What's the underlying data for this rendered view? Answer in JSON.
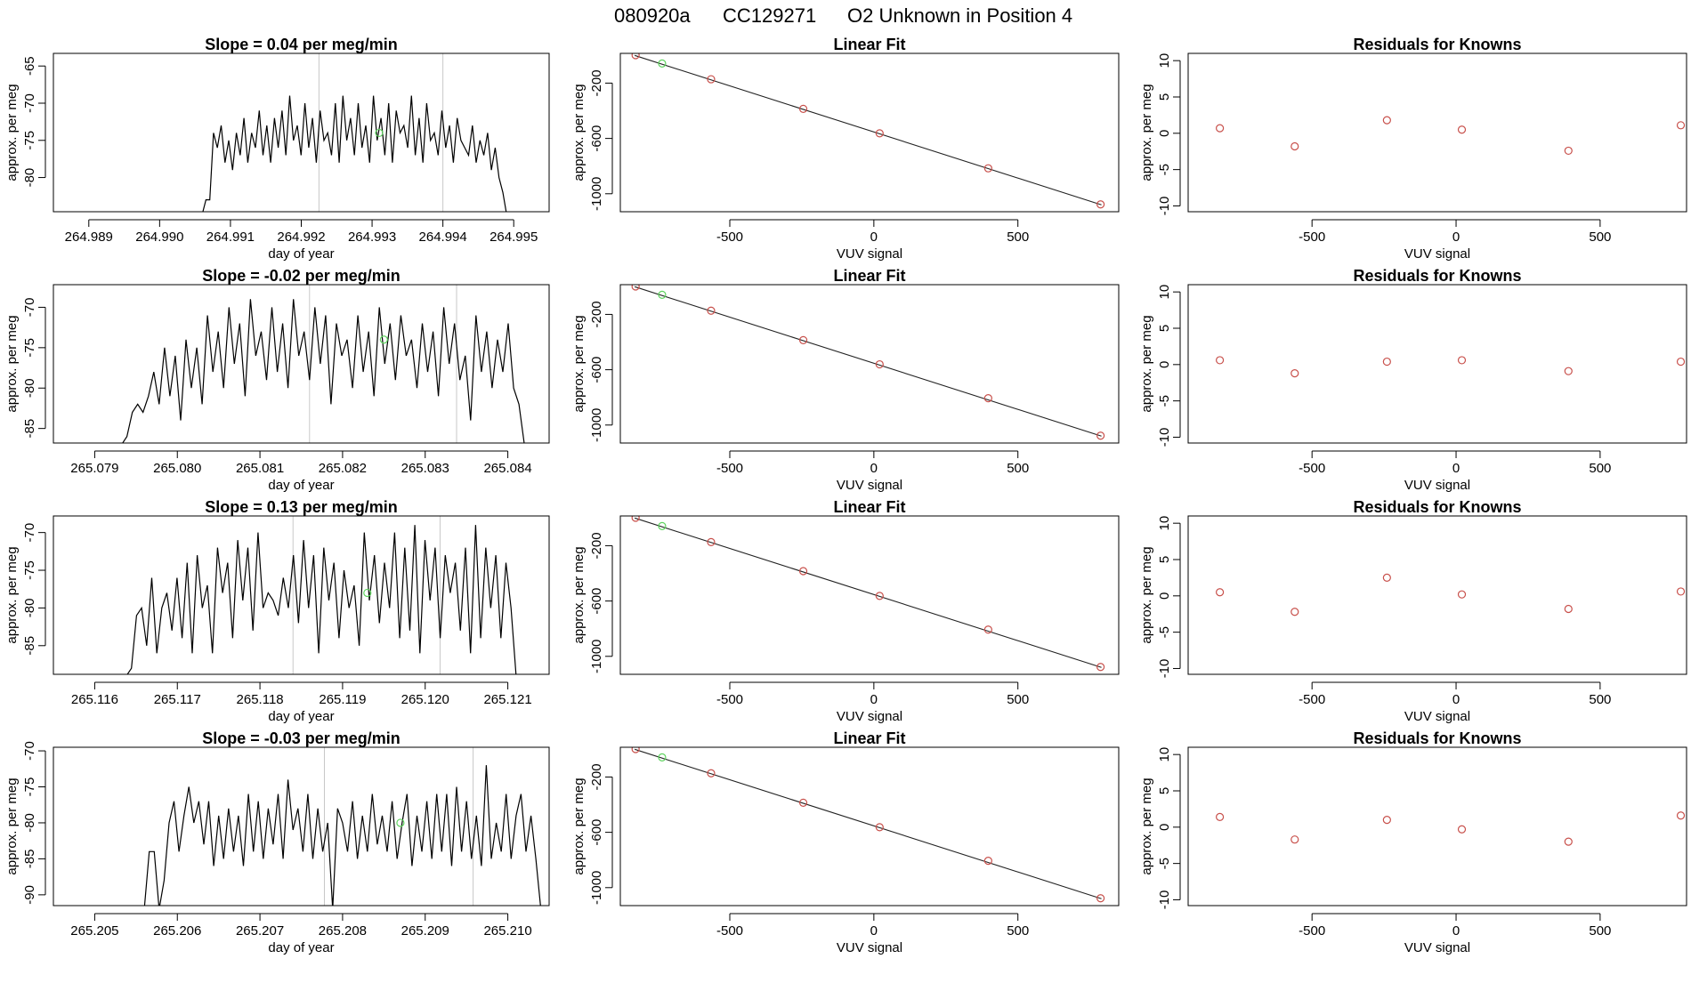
{
  "figure": {
    "title_parts": [
      "080920a",
      "CC129271",
      "O2 Unknown in Position  4"
    ]
  },
  "colors": {
    "axis": "#000000",
    "series_line": "#000000",
    "gridline": "#c8c8c8",
    "fit_point": "#c8504b",
    "unknown_point": "#5ed35e"
  },
  "chart_data": [
    {
      "type": "line",
      "row": 0,
      "col": 0,
      "title": "Slope =  0.04  per meg/min",
      "xlabel": "day of year",
      "ylabel": "approx. per meg",
      "xlim": [
        264.9885,
        264.9955
      ],
      "ylim": [
        -84.6,
        -63.3
      ],
      "xticks": [
        264.989,
        264.99,
        264.991,
        264.992,
        264.993,
        264.994,
        264.995
      ],
      "xtick_labels": [
        "264.989",
        "264.990",
        "264.991",
        "264.992",
        "264.993",
        "264.994",
        "264.995"
      ],
      "yticks": [
        -65,
        -70,
        -75,
        -80
      ],
      "ytick_labels": [
        "-65",
        "-70",
        "-75",
        "-80"
      ],
      "vlines": [
        264.99225,
        264.994
      ],
      "unknown_point": [
        264.9931,
        -74.0
      ],
      "x_start": 264.9906,
      "x_end": 264.9949,
      "series": [
        -85,
        -83,
        -83,
        -74,
        -76,
        -73,
        -78,
        -75,
        -79,
        -74,
        -77,
        -72,
        -78,
        -74,
        -76,
        -71,
        -77,
        -73,
        -78,
        -72,
        -76,
        -71,
        -77,
        -69,
        -75,
        -73,
        -77,
        -70,
        -76,
        -72,
        -78,
        -71,
        -75,
        -74,
        -77,
        -70,
        -78,
        -69,
        -75,
        -72,
        -77,
        -70,
        -76,
        -73,
        -78,
        -69,
        -75,
        -72,
        -77,
        -70,
        -78,
        -71,
        -74,
        -73,
        -76,
        -69,
        -77,
        -72,
        -78,
        -70,
        -75,
        -74,
        -77,
        -71,
        -76,
        -73,
        -78,
        -72,
        -75,
        -76,
        -77,
        -73,
        -78,
        -75,
        -77,
        -74,
        -79,
        -76,
        -80,
        -82,
        -85
      ]
    },
    {
      "type": "scatter",
      "row": 0,
      "col": 1,
      "title": "Linear Fit",
      "xlabel": "VUV signal",
      "ylabel": "approx. per meg",
      "xlim": [
        -880,
        850
      ],
      "ylim": [
        -1130,
        15
      ],
      "xticks": [
        -500,
        0,
        500
      ],
      "xtick_labels": [
        "-500",
        "0",
        "500"
      ],
      "yticks": [
        -200,
        -600,
        -1000
      ],
      "ytick_labels": [
        "-200",
        "-600",
        "-1000"
      ],
      "fit_line": [
        [
          -830,
          0
        ],
        [
          790,
          -1080
        ]
      ],
      "points": [
        [
          -827,
          2
        ],
        [
          -565,
          -172
        ],
        [
          -245,
          -386
        ],
        [
          20,
          -563
        ],
        [
          397,
          -816
        ],
        [
          787,
          -1077
        ]
      ],
      "unknown_point": [
        -735,
        -58
      ]
    },
    {
      "type": "scatter",
      "row": 0,
      "col": 2,
      "title": "Residuals for Knowns",
      "xlabel": "VUV signal",
      "ylabel": "approx. per meg",
      "xlim": [
        -930,
        800
      ],
      "ylim": [
        -10.8,
        11
      ],
      "xticks": [
        -500,
        0,
        500
      ],
      "xtick_labels": [
        "-500",
        "0",
        "500"
      ],
      "yticks": [
        10,
        5,
        0,
        -5,
        -10
      ],
      "ytick_labels": [
        "10",
        "5",
        "0",
        "-5",
        "-10"
      ],
      "points": [
        [
          -820,
          0.7
        ],
        [
          -560,
          -1.8
        ],
        [
          -240,
          1.8
        ],
        [
          20,
          0.5
        ],
        [
          390,
          -2.4
        ],
        [
          780,
          1.1
        ]
      ]
    },
    {
      "type": "line",
      "row": 1,
      "col": 0,
      "title": "Slope =  -0.02  per meg/min",
      "xlabel": "day of year",
      "ylabel": "approx. per meg",
      "xlim": [
        265.0785,
        265.0845
      ],
      "ylim": [
        -86.8,
        -67.2
      ],
      "xticks": [
        265.079,
        265.08,
        265.081,
        265.082,
        265.083,
        265.084
      ],
      "xtick_labels": [
        "265.079",
        "265.080",
        "265.081",
        "265.082",
        "265.083",
        "265.084"
      ],
      "vlines": [
        265.0816,
        265.08338
      ],
      "yticks": [
        -70,
        -75,
        -80,
        -85
      ],
      "ytick_labels": [
        "-70",
        "-75",
        "-80",
        "-85"
      ],
      "unknown_point": [
        265.0825,
        -74.0
      ],
      "x_start": 265.079,
      "x_end": 265.0842,
      "series": [
        -87,
        -87,
        -87,
        -87,
        -87,
        -87,
        -86,
        -83,
        -82,
        -83,
        -81,
        -78,
        -82,
        -75,
        -81,
        -76,
        -84,
        -74,
        -80,
        -75,
        -82,
        -71,
        -78,
        -73,
        -80,
        -70,
        -77,
        -72,
        -81,
        -69,
        -76,
        -73,
        -79,
        -70,
        -78,
        -72,
        -80,
        -69,
        -76,
        -73,
        -79,
        -70,
        -77,
        -71,
        -82,
        -72,
        -76,
        -74,
        -80,
        -71,
        -78,
        -73,
        -81,
        -70,
        -77,
        -72,
        -79,
        -71,
        -76,
        -74,
        -80,
        -72,
        -78,
        -73,
        -81,
        -70,
        -77,
        -72,
        -79,
        -76,
        -84,
        -71,
        -78,
        -73,
        -80,
        -74,
        -78,
        -72,
        -80,
        -82,
        -87
      ]
    },
    {
      "type": "scatter",
      "row": 1,
      "col": 1,
      "title": "Linear Fit",
      "xlabel": "VUV signal",
      "ylabel": "approx. per meg",
      "xlim": [
        -880,
        850
      ],
      "ylim": [
        -1130,
        15
      ],
      "xticks": [
        -500,
        0,
        500
      ],
      "xtick_labels": [
        "-500",
        "0",
        "500"
      ],
      "yticks": [
        -200,
        -600,
        -1000
      ],
      "ytick_labels": [
        "-200",
        "-600",
        "-1000"
      ],
      "fit_line": [
        [
          -830,
          0
        ],
        [
          790,
          -1080
        ]
      ],
      "points": [
        [
          -827,
          2
        ],
        [
          -565,
          -173
        ],
        [
          -245,
          -386
        ],
        [
          20,
          -561
        ],
        [
          397,
          -806
        ],
        [
          787,
          -1077
        ]
      ],
      "unknown_point": [
        -735,
        -58
      ]
    },
    {
      "type": "scatter",
      "row": 1,
      "col": 2,
      "title": "Residuals for Knowns",
      "xlabel": "VUV signal",
      "ylabel": "approx. per meg",
      "xlim": [
        -930,
        800
      ],
      "ylim": [
        -10.8,
        11
      ],
      "xticks": [
        -500,
        0,
        500
      ],
      "xtick_labels": [
        "-500",
        "0",
        "500"
      ],
      "yticks": [
        10,
        5,
        0,
        -5,
        -10
      ],
      "ytick_labels": [
        "10",
        "5",
        "0",
        "-5",
        "-10"
      ],
      "points": [
        [
          -820,
          0.6
        ],
        [
          -560,
          -1.2
        ],
        [
          -240,
          0.4
        ],
        [
          20,
          0.6
        ],
        [
          390,
          -0.9
        ],
        [
          780,
          0.4
        ]
      ]
    },
    {
      "type": "line",
      "row": 2,
      "col": 0,
      "title": "Slope =  0.13  per meg/min",
      "xlabel": "day of year",
      "ylabel": "approx. per meg",
      "xlim": [
        265.1155,
        265.1215
      ],
      "ylim": [
        -88.8,
        -67.8
      ],
      "xticks": [
        265.116,
        265.117,
        265.118,
        265.119,
        265.12,
        265.121
      ],
      "xtick_labels": [
        "265.116",
        "265.117",
        "265.118",
        "265.119",
        "265.120",
        "265.121"
      ],
      "vlines": [
        265.1184,
        265.12018
      ],
      "yticks": [
        -70,
        -75,
        -80,
        -85
      ],
      "ytick_labels": [
        "-70",
        "-75",
        "-80",
        "-85"
      ],
      "unknown_point": [
        265.1193,
        -78.0
      ],
      "x_start": 265.1162,
      "x_end": 265.1211,
      "series": [
        -89,
        -89,
        -89,
        -89,
        -88,
        -81,
        -80,
        -85,
        -76,
        -86,
        -80,
        -78,
        -83,
        -76,
        -84,
        -74,
        -86,
        -73,
        -80,
        -77,
        -86,
        -72,
        -78,
        -74,
        -84,
        -71,
        -79,
        -72,
        -83,
        -70,
        -80,
        -78,
        -79,
        -81,
        -76,
        -80,
        -73,
        -82,
        -71,
        -80,
        -73,
        -86,
        -72,
        -79,
        -74,
        -84,
        -75,
        -80,
        -77,
        -85,
        -70,
        -79,
        -73,
        -82,
        -74,
        -80,
        -70,
        -84,
        -72,
        -83,
        -69,
        -86,
        -71,
        -79,
        -72,
        -84,
        -73,
        -78,
        -74,
        -83,
        -72,
        -86,
        -69,
        -84,
        -72,
        -80,
        -73,
        -84,
        -74,
        -80,
        -89
      ]
    },
    {
      "type": "scatter",
      "row": 2,
      "col": 1,
      "title": "Linear Fit",
      "xlabel": "VUV signal",
      "ylabel": "approx. per meg",
      "xlim": [
        -880,
        850
      ],
      "ylim": [
        -1130,
        15
      ],
      "xticks": [
        -500,
        0,
        500
      ],
      "xtick_labels": [
        "-500",
        "0",
        "500"
      ],
      "yticks": [
        -200,
        -600,
        -1000
      ],
      "ytick_labels": [
        "-200",
        "-600",
        "-1000"
      ],
      "fit_line": [
        [
          -830,
          0
        ],
        [
          790,
          -1080
        ]
      ],
      "points": [
        [
          -827,
          2
        ],
        [
          -565,
          -174
        ],
        [
          -245,
          -384
        ],
        [
          20,
          -563
        ],
        [
          397,
          -807
        ],
        [
          787,
          -1077
        ]
      ],
      "unknown_point": [
        -735,
        -58
      ]
    },
    {
      "type": "scatter",
      "row": 2,
      "col": 2,
      "title": "Residuals for Knowns",
      "xlabel": "VUV signal",
      "ylabel": "approx. per meg",
      "xlim": [
        -930,
        800
      ],
      "ylim": [
        -10.8,
        11
      ],
      "xticks": [
        -500,
        0,
        500
      ],
      "xtick_labels": [
        "-500",
        "0",
        "500"
      ],
      "yticks": [
        10,
        5,
        0,
        -5,
        -10
      ],
      "ytick_labels": [
        "10",
        "5",
        "0",
        "-5",
        "-10"
      ],
      "points": [
        [
          -820,
          0.5
        ],
        [
          -560,
          -2.2
        ],
        [
          -240,
          2.5
        ],
        [
          20,
          0.2
        ],
        [
          390,
          -1.8
        ],
        [
          780,
          0.6
        ]
      ]
    },
    {
      "type": "line",
      "row": 3,
      "col": 0,
      "title": "Slope =  -0.03  per meg/min",
      "xlabel": "day of year",
      "ylabel": "approx. per meg",
      "xlim": [
        265.2045,
        265.2105
      ],
      "ylim": [
        -91.5,
        -69.5
      ],
      "xticks": [
        265.205,
        265.206,
        265.207,
        265.208,
        265.209,
        265.21
      ],
      "xtick_labels": [
        "265.205",
        "265.206",
        "265.207",
        "265.208",
        "265.209",
        "265.210"
      ],
      "vlines": [
        265.20778,
        265.20958
      ],
      "yticks": [
        -70,
        -75,
        -80,
        -85,
        -90
      ],
      "ytick_labels": [
        "-70",
        "-75",
        "-80",
        "-85",
        "-90"
      ],
      "unknown_point": [
        265.2087,
        -80.0
      ],
      "x_start": 265.2056,
      "x_end": 265.2104,
      "series": [
        -92,
        -84,
        -84,
        -92,
        -88,
        -80,
        -77,
        -84,
        -79,
        -75,
        -80,
        -77,
        -83,
        -77,
        -86,
        -79,
        -85,
        -78,
        -84,
        -79,
        -86,
        -76,
        -84,
        -77,
        -85,
        -78,
        -83,
        -76,
        -85,
        -74,
        -81,
        -78,
        -84,
        -76,
        -85,
        -78,
        -84,
        -80,
        -92,
        -78,
        -80,
        -84,
        -77,
        -85,
        -79,
        -84,
        -76,
        -83,
        -79,
        -84,
        -77,
        -85,
        -80,
        -76,
        -86,
        -79,
        -84,
        -77,
        -85,
        -76,
        -84,
        -76,
        -86,
        -75,
        -84,
        -77,
        -85,
        -79,
        -86,
        -72,
        -85,
        -80,
        -84,
        -76,
        -85,
        -79,
        -76,
        -84,
        -79,
        -85,
        -92
      ]
    },
    {
      "type": "scatter",
      "row": 3,
      "col": 1,
      "title": "Linear Fit",
      "xlabel": "VUV signal",
      "ylabel": "approx. per meg",
      "xlim": [
        -880,
        850
      ],
      "ylim": [
        -1130,
        15
      ],
      "xticks": [
        -500,
        0,
        500
      ],
      "xtick_labels": [
        "-500",
        "0",
        "500"
      ],
      "yticks": [
        -200,
        -600,
        -1000
      ],
      "ytick_labels": [
        "-200",
        "-600",
        "-1000"
      ],
      "fit_line": [
        [
          -830,
          0
        ],
        [
          790,
          -1080
        ]
      ],
      "points": [
        [
          -827,
          2
        ],
        [
          -565,
          -173
        ],
        [
          -245,
          -386
        ],
        [
          20,
          -563
        ],
        [
          397,
          -806
        ],
        [
          787,
          -1077
        ]
      ],
      "unknown_point": [
        -735,
        -58
      ]
    },
    {
      "type": "scatter",
      "row": 3,
      "col": 2,
      "title": "Residuals for Knowns",
      "xlabel": "VUV signal",
      "ylabel": "approx. per meg",
      "xlim": [
        -930,
        800
      ],
      "ylim": [
        -10.8,
        11
      ],
      "xticks": [
        -500,
        0,
        500
      ],
      "xtick_labels": [
        "-500",
        "0",
        "500"
      ],
      "yticks": [
        10,
        5,
        0,
        -5,
        -10
      ],
      "ytick_labels": [
        "10",
        "5",
        "0",
        "-5",
        "-10"
      ],
      "points": [
        [
          -820,
          1.4
        ],
        [
          -560,
          -1.7
        ],
        [
          -240,
          1.0
        ],
        [
          20,
          -0.3
        ],
        [
          390,
          -2.0
        ],
        [
          780,
          1.6
        ]
      ]
    }
  ]
}
